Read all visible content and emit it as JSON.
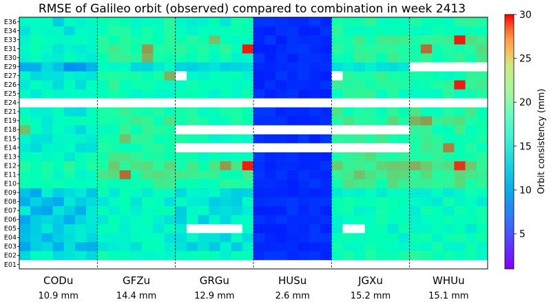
{
  "chart_data": {
    "type": "heatmap",
    "title": "RMSE of Galileo orbit (observed) compared to combination in week 2413",
    "satellites": [
      "E01",
      "E02",
      "E03",
      "E04",
      "E05",
      "E06",
      "E07",
      "E08",
      "E09",
      "E10",
      "E11",
      "E12",
      "E13",
      "E14",
      "E15",
      "E18",
      "E19",
      "E21",
      "E24",
      "E25",
      "E26",
      "E27",
      "E29",
      "E30",
      "E31",
      "E33",
      "E34",
      "E36"
    ],
    "centres": [
      {
        "name": "CODu",
        "rmse_label": "10.9 mm",
        "level": 10.9
      },
      {
        "name": "GFZu",
        "rmse_label": "14.4 mm",
        "level": 14.4
      },
      {
        "name": "GRGu",
        "rmse_label": "12.9 mm",
        "level": 12.9
      },
      {
        "name": "HUSu",
        "rmse_label": "2.6 mm",
        "level": 2.6
      },
      {
        "name": "JGXu",
        "rmse_label": "15.2 mm",
        "level": 15.2
      },
      {
        "name": "WHUu",
        "rmse_label": "15.1 mm",
        "level": 15.1
      }
    ],
    "columns_per_centre": 7,
    "missing_rows_all": [
      "E01",
      "E24"
    ],
    "missing_rows_by_centre": {
      "GRGu": [
        "E14",
        "E18"
      ],
      "HUSu": [
        "E14",
        "E18"
      ],
      "JGXu": [
        "E14",
        "E18"
      ],
      "WHUu": [
        "E29"
      ]
    },
    "missing_cells": [
      {
        "centre": "GRGu",
        "sat": "E05",
        "cols": [
          1,
          2,
          3,
          4,
          5
        ]
      },
      {
        "centre": "GRGu",
        "sat": "E27",
        "cols": [
          0
        ]
      },
      {
        "centre": "JGXu",
        "sat": "E05",
        "cols": [
          1,
          2
        ]
      },
      {
        "centre": "JGXu",
        "sat": "E27",
        "cols": [
          0
        ]
      }
    ],
    "satellite_offsets": {
      "E02": 1,
      "E03": -1,
      "E04": -1,
      "E05": -1,
      "E06": -1,
      "E07": -1,
      "E08": -1,
      "E09": -1,
      "E10": 3,
      "E11": 4,
      "E12": 5,
      "E13": 3,
      "E14": 2,
      "E15": 2,
      "E18": 2,
      "E19": 3,
      "E21": 2,
      "E25": 1,
      "E26": 2,
      "E27": 1,
      "E29": -2,
      "E30": 2,
      "E31": 3,
      "E33": 3,
      "E34": 1,
      "E36": 1
    },
    "hot_cells": [
      {
        "centre": "GRGu",
        "sat": "E31",
        "col": 6,
        "value": 29
      },
      {
        "centre": "GRGu",
        "sat": "E12",
        "col": 6,
        "value": 29
      },
      {
        "centre": "GRGu",
        "sat": "E12",
        "col": 4,
        "value": 24
      },
      {
        "centre": "GRGu",
        "sat": "E33",
        "col": 3,
        "value": 22
      },
      {
        "centre": "GFZu",
        "sat": "E11",
        "col": 2,
        "value": 26
      },
      {
        "centre": "GFZu",
        "sat": "E31",
        "col": 4,
        "value": 24
      },
      {
        "centre": "GFZu",
        "sat": "E30",
        "col": 4,
        "value": 23
      },
      {
        "centre": "GFZu",
        "sat": "E27",
        "col": 6,
        "value": 23
      },
      {
        "centre": "GFZu",
        "sat": "E15",
        "col": 2,
        "value": 22
      },
      {
        "centre": "JGXu",
        "sat": "E11",
        "col": 2,
        "value": 22
      },
      {
        "centre": "WHUu",
        "sat": "E33",
        "col": 4,
        "value": 29
      },
      {
        "centre": "WHUu",
        "sat": "E26",
        "col": 4,
        "value": 29
      },
      {
        "centre": "WHUu",
        "sat": "E12",
        "col": 4,
        "value": 28
      },
      {
        "centre": "WHUu",
        "sat": "E31",
        "col": 1,
        "value": 26
      },
      {
        "centre": "WHUu",
        "sat": "E14",
        "col": 3,
        "value": 25
      },
      {
        "centre": "WHUu",
        "sat": "E19",
        "col": 0,
        "value": 23
      },
      {
        "centre": "WHUu",
        "sat": "E19",
        "col": 1,
        "value": 24
      },
      {
        "centre": "WHUu",
        "sat": "E12",
        "col": 0,
        "value": 23
      },
      {
        "centre": "CODu",
        "sat": "E18",
        "col": 0,
        "value": 22
      }
    ],
    "colorbar": {
      "label": "Orbit consistency (mm)",
      "min": 1,
      "max": 30,
      "ticks": [
        5,
        10,
        15,
        20,
        25,
        30
      ],
      "colormap": "rainbow"
    }
  }
}
